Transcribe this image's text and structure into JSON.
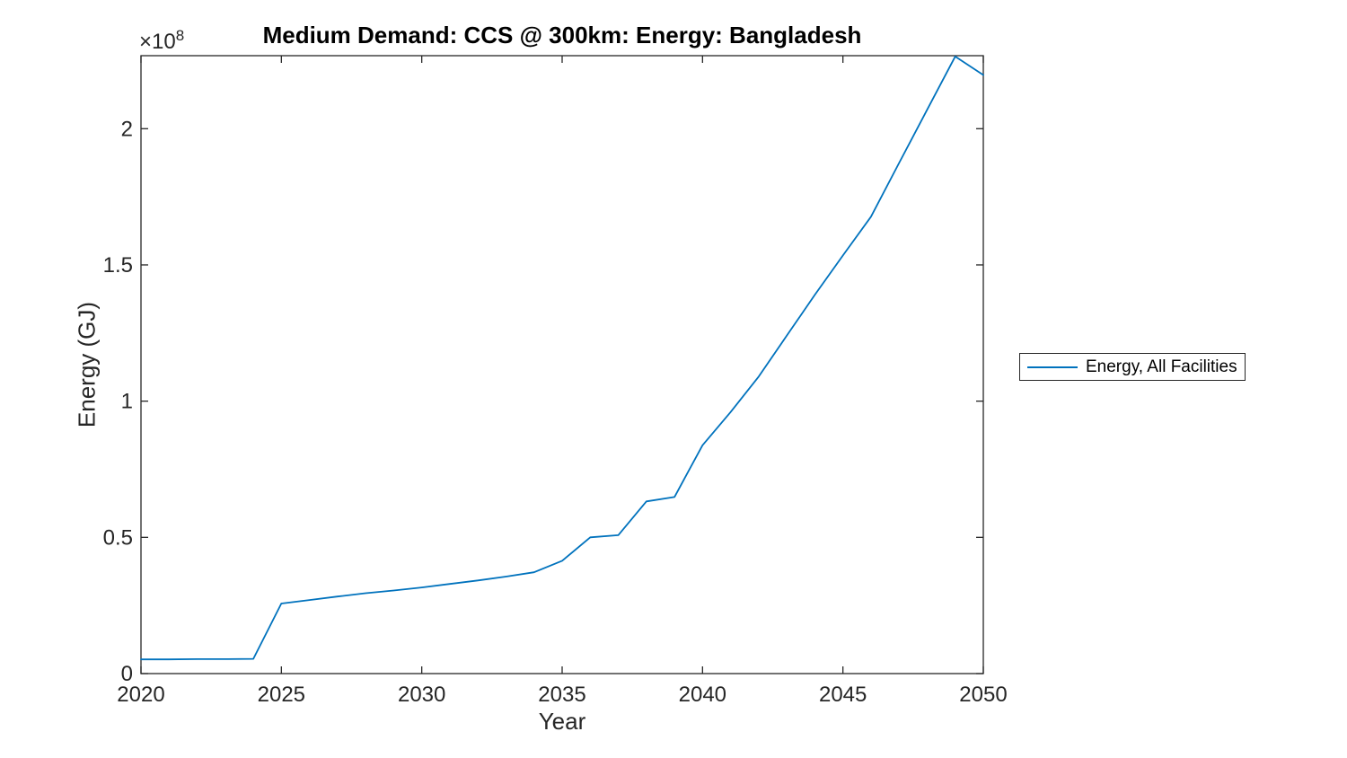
{
  "figure": {
    "title": "Medium Demand: CCS @ 300km: Energy: Bangladesh",
    "background_color": "#ffffff"
  },
  "axes": {
    "xlabel": "Year",
    "ylabel": "Energy (GJ)",
    "multiplier_base": "×10",
    "multiplier_exponent": "8",
    "axis_color": "#262626",
    "tick_direction": "in"
  },
  "legend": {
    "position": "outside right",
    "entries": [
      {
        "label": "Energy, All Facilities",
        "color": "#0072BD",
        "style": "solid-line"
      }
    ]
  },
  "chart_data": {
    "type": "line",
    "title": "Medium Demand: CCS @ 300km: Energy: Bangladesh",
    "xlabel": "Year",
    "ylabel": "Energy (GJ)",
    "y_unit_note": "values are in units of 1e8 GJ (axis shows ×10^8)",
    "x": [
      2020,
      2021,
      2022,
      2023,
      2024,
      2025,
      2026,
      2027,
      2028,
      2029,
      2030,
      2031,
      2032,
      2033,
      2034,
      2035,
      2036,
      2037,
      2038,
      2039,
      2040,
      2041,
      2042,
      2043,
      2044,
      2045,
      2046,
      2047,
      2048,
      2049,
      2050
    ],
    "series": [
      {
        "name": "Energy, All Facilities",
        "color": "#0072BD",
        "values_1e8_GJ": [
          0.052,
          0.052,
          0.053,
          0.053,
          0.054,
          0.257,
          0.27,
          0.283,
          0.295,
          0.305,
          0.316,
          0.329,
          0.342,
          0.356,
          0.372,
          0.414,
          0.5,
          0.508,
          0.632,
          0.648,
          0.838,
          0.96,
          1.09,
          1.24,
          1.39,
          1.535,
          1.677,
          1.874,
          2.07,
          2.265,
          2.197
        ]
      }
    ],
    "xlim": [
      2020,
      2050
    ],
    "ylim_1e8": [
      0,
      2.268
    ],
    "xtick_labels": [
      "2020",
      "2025",
      "2030",
      "2035",
      "2040",
      "2045",
      "2050"
    ],
    "xtick_values": [
      2020,
      2025,
      2030,
      2035,
      2040,
      2045,
      2050
    ],
    "ytick_labels": [
      "0",
      "0.5",
      "1",
      "1.5",
      "2"
    ],
    "ytick_values_1e8": [
      0,
      0.5,
      1,
      1.5,
      2
    ],
    "grid": false,
    "legend_position": "outside right"
  }
}
